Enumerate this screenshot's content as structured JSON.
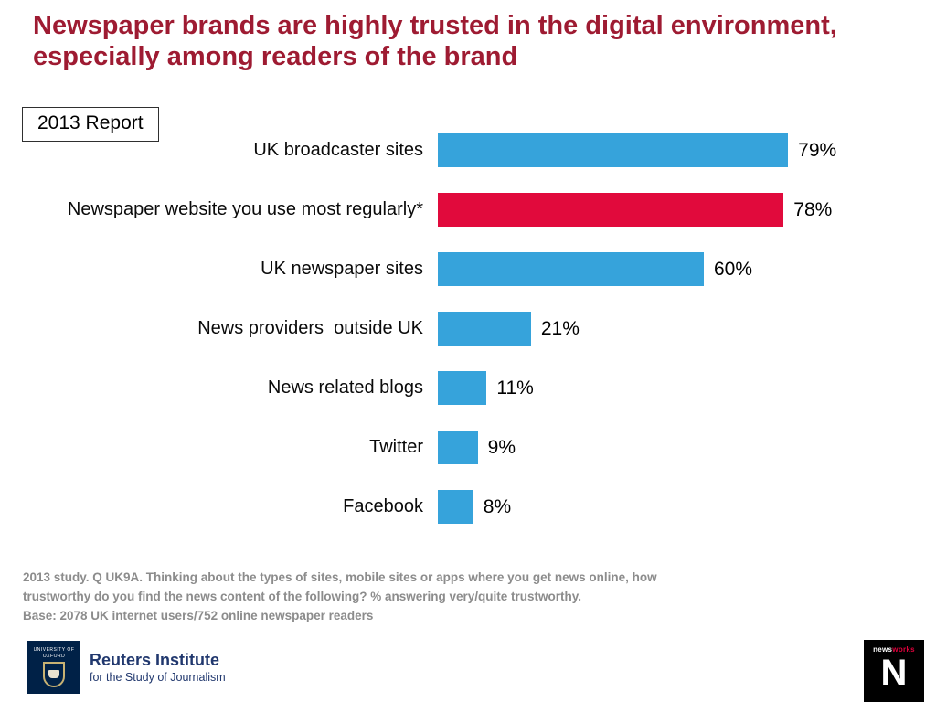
{
  "slide": {
    "title": "Newspaper brands are highly trusted in the digital environment, especially among readers of the brand",
    "report_label": "2013 Report"
  },
  "chart_data": {
    "type": "bar",
    "orientation": "horizontal",
    "title": "",
    "categories": [
      "UK broadcaster sites",
      "Newspaper website you use most regularly*",
      "UK newspaper sites",
      "News providers  outside UK",
      "News related blogs",
      "Twitter",
      "Facebook"
    ],
    "values": [
      79,
      78,
      60,
      21,
      11,
      9,
      8
    ],
    "value_labels": [
      "79%",
      "78%",
      "60%",
      "21%",
      "11%",
      "9%",
      "8%"
    ],
    "bar_colors": [
      "#36a3db",
      "#e10a3c",
      "#36a3db",
      "#36a3db",
      "#36a3db",
      "#36a3db",
      "#36a3db"
    ],
    "highlight_index": 1,
    "xlim": [
      0,
      100
    ],
    "grid": false,
    "legend": "none"
  },
  "footnote": {
    "lines": [
      "2013 study. Q UK9A. Thinking about the types of sites, mobile sites or apps where you get news online, how",
      "trustworthy do you find the news content of the following?  % answering very/quite trustworthy.",
      "Base: 2078 UK  internet users/752 online newspaper readers"
    ]
  },
  "footer": {
    "reuters": {
      "crest_text": "UNIVERSITY OF OXFORD",
      "name": "Reuters Institute",
      "subtitle": "for the Study of Journalism"
    },
    "newsworks": {
      "news": "news",
      "works": "works",
      "letter": "N"
    }
  },
  "colors": {
    "title_red": "#9e1b32",
    "bar_blue": "#36a3db",
    "bar_red": "#e10a3c",
    "footnote_gray": "#8c8c8c",
    "oxford_navy": "#002147",
    "reuters_navy": "#21386e",
    "newsworks_red": "#e0003c"
  }
}
